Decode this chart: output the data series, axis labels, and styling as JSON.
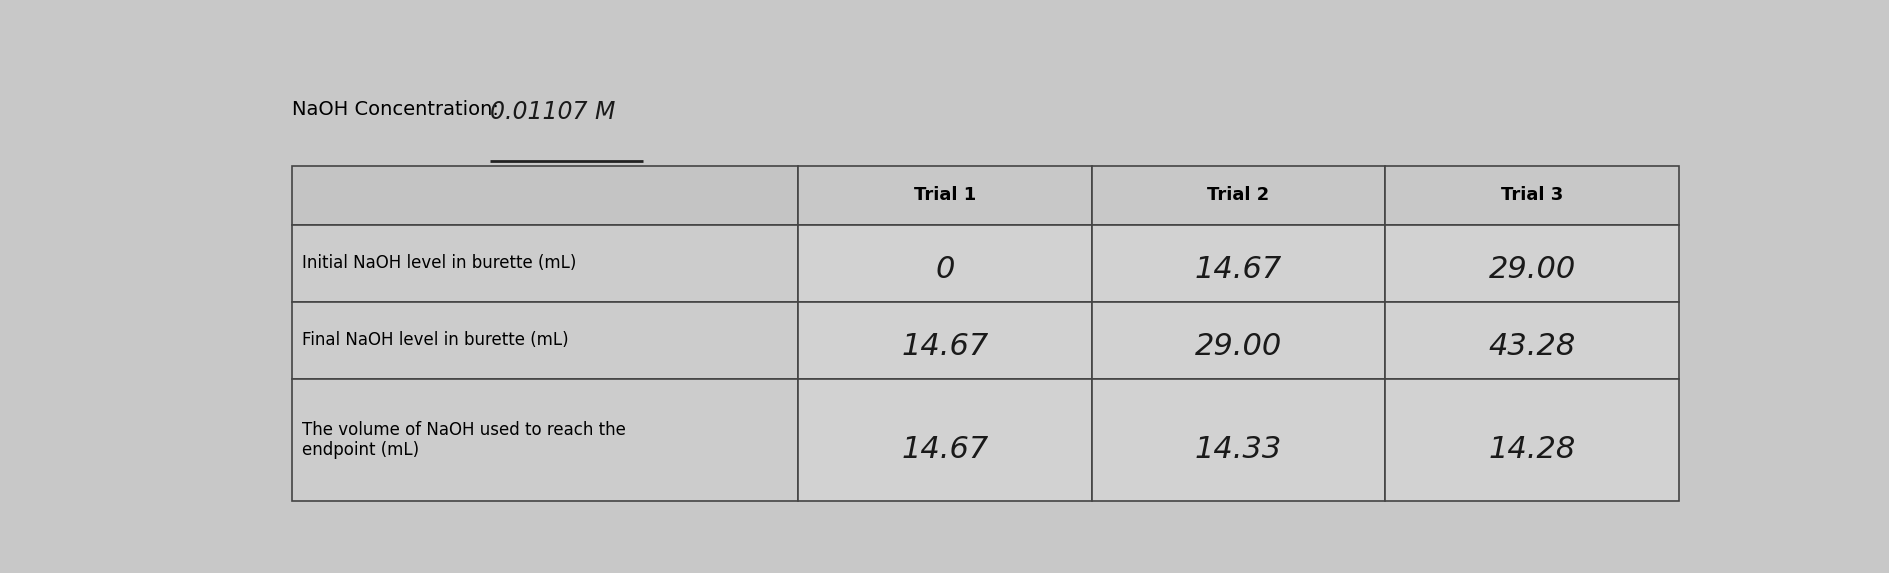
{
  "title_label": "NaOH Concentration:",
  "title_value": "0.01107 M",
  "background_color": "#c8c8c8",
  "cell_color": "#d0d0d0",
  "header_cell_color": "#c8c8c8",
  "edge_color": "#444444",
  "col_headers": [
    "Trial 1",
    "Trial 2",
    "Trial 3"
  ],
  "row_labels": [
    "Initial NaOH level in burette (mL)",
    "Final NaOH level in burette (mL)",
    "The volume of NaOH used to reach the\nendpoint (mL)"
  ],
  "handwritten_values": [
    [
      "0",
      "14.67",
      "29.00"
    ],
    [
      "14.67",
      "29.00",
      "43.28"
    ],
    [
      "14.67",
      "14.33",
      "14.28"
    ]
  ],
  "handwritten_font_size": 22,
  "label_font_size": 12,
  "header_font_size": 13,
  "title_font_size": 14,
  "title_value_font_size": 17
}
